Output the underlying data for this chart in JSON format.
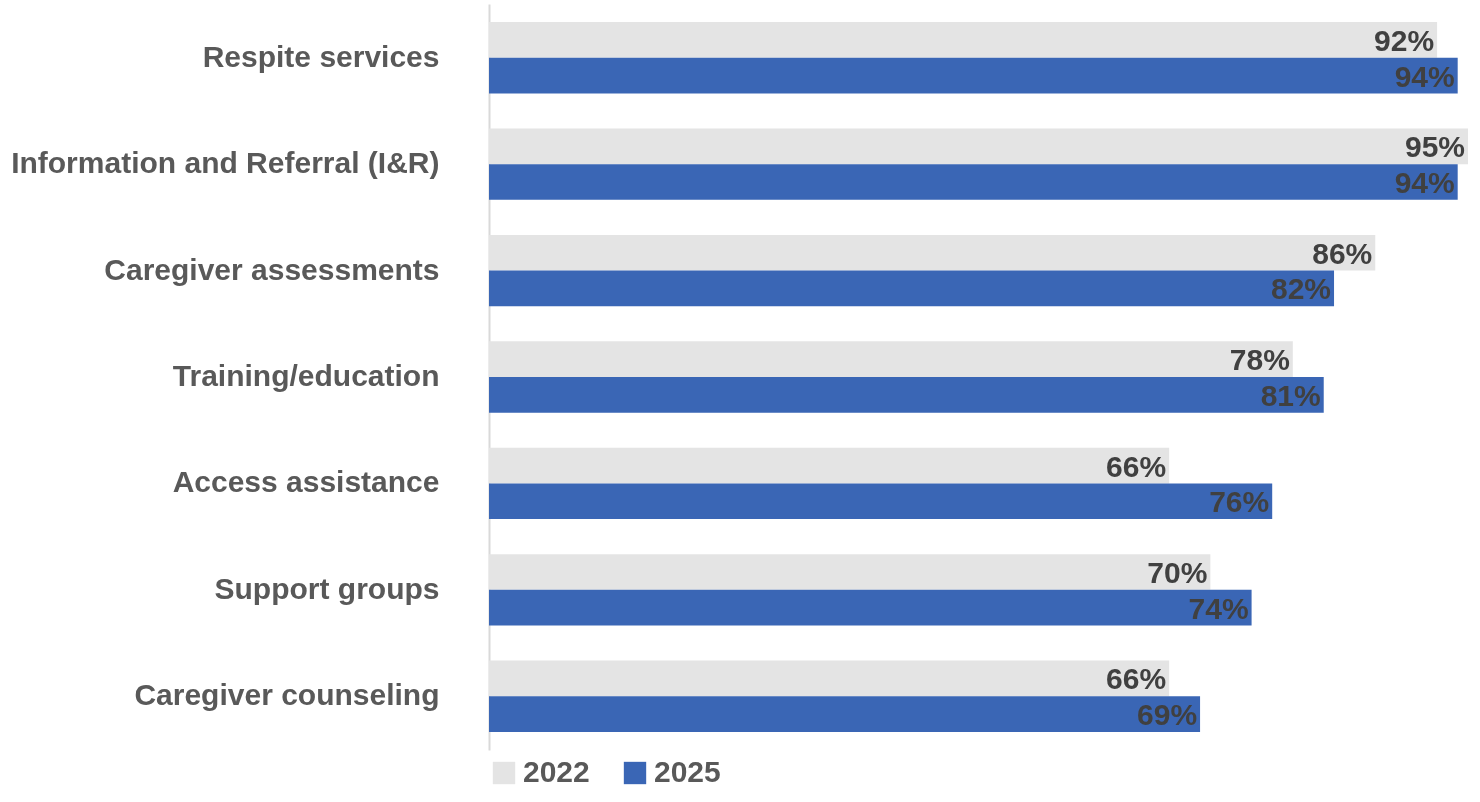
{
  "chart_data": {
    "type": "bar",
    "orientation": "horizontal",
    "categories": [
      "Respite services",
      "Information and Referral (I&R)",
      "Caregiver assessments",
      "Training/education",
      "Access assistance",
      "Support groups",
      "Caregiver counseling"
    ],
    "series": [
      {
        "name": "2022",
        "color": "#e4e4e4",
        "values": [
          92,
          95,
          86,
          78,
          66,
          70,
          66
        ],
        "value_labels": [
          "92%",
          "95%",
          "86%",
          "78%",
          "66%",
          "70%",
          "66%"
        ]
      },
      {
        "name": "2025",
        "color": "#3a66b5",
        "values": [
          94,
          94,
          82,
          81,
          76,
          74,
          69
        ],
        "value_labels": [
          "94%",
          "94%",
          "82%",
          "81%",
          "76%",
          "74%",
          "69%"
        ]
      }
    ],
    "xlim": [
      0,
      95
    ],
    "tick_labels": "y",
    "legend": "bottom"
  }
}
